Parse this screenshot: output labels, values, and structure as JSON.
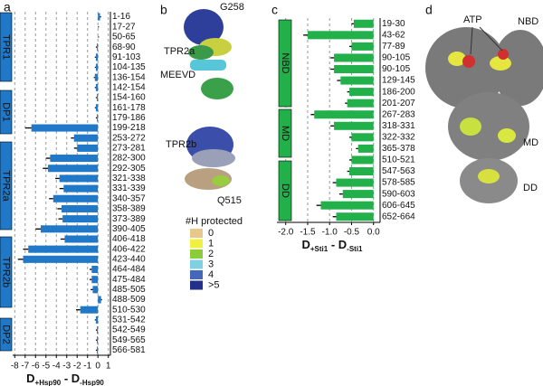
{
  "panels": [
    "a",
    "b",
    "c",
    "d"
  ],
  "chart_data": [
    {
      "type": "bar",
      "orientation": "horizontal",
      "categories": [
        "1-16",
        "17-27",
        "50-65",
        "68-90",
        "91-103",
        "104-135",
        "136-154",
        "142-154",
        "154-160",
        "161-178",
        "179-186",
        "199-218",
        "253-272",
        "273-281",
        "282-300",
        "292-305",
        "321-338",
        "331-339",
        "340-357",
        "358-389",
        "373-389",
        "390-405",
        "406-418",
        "406-422",
        "423-440",
        "464-484",
        "475-484",
        "485-505",
        "488-509",
        "510-530",
        "531-542",
        "542-549",
        "549-565",
        "566-581"
      ],
      "values": [
        0.2,
        0,
        0,
        -0.1,
        -0.2,
        -0.2,
        -0.3,
        -0.2,
        -0.1,
        -0.2,
        -0.1,
        -6.4,
        -2.3,
        -2.0,
        -4.6,
        -4.8,
        -3.7,
        -3.3,
        -4.3,
        -3.5,
        -3.4,
        -5.5,
        -3.2,
        -6.7,
        -7.2,
        -0.6,
        -0.6,
        -0.5,
        0.3,
        -1.7,
        -0.2,
        -0.1,
        -0.1,
        -0.1
      ],
      "errors": [
        0.1,
        0.1,
        0.1,
        0.1,
        0.1,
        0.1,
        0.1,
        0.1,
        0.1,
        0.1,
        0.1,
        0.6,
        0.3,
        0.3,
        0.4,
        0.5,
        0.4,
        0.4,
        0.4,
        0.4,
        0.4,
        0.5,
        0.4,
        0.5,
        0.5,
        0.2,
        0.2,
        0.2,
        0.1,
        0.4,
        0.1,
        0.1,
        0.1,
        0.1
      ],
      "color": "#1f78c8",
      "xlim": [
        -8.2,
        1.2
      ],
      "xticks": [
        -8,
        -7,
        -6,
        -5,
        -4,
        -3,
        -2,
        -1,
        0,
        1
      ],
      "grid": true,
      "x_label": [
        "D",
        "+Hsp90",
        " - D",
        "-Hsp90"
      ],
      "domains": [
        "TPR1",
        "DP1",
        "TPR2a",
        "TPR2b",
        "DP2"
      ],
      "domain_color": "#1f78c8"
    },
    {
      "type": "bar",
      "orientation": "horizontal",
      "categories": [
        "19-30",
        "43-62",
        "77-89",
        "90-105",
        "90-105",
        "129-145",
        "186-200",
        "201-207",
        "267-283",
        "318-331",
        "322-332",
        "365-378",
        "510-521",
        "547-563",
        "578-585",
        "590-603",
        "606-645",
        "652-664"
      ],
      "values": [
        -0.45,
        -1.5,
        -0.5,
        -0.9,
        -0.9,
        -0.75,
        -0.55,
        -0.6,
        -1.35,
        -0.9,
        -0.5,
        -0.35,
        -0.5,
        -0.55,
        -0.85,
        -0.7,
        -1.2,
        -0.85
      ],
      "errors": [
        0.05,
        0.1,
        0.05,
        0.08,
        0.08,
        0.08,
        0.05,
        0.05,
        0.08,
        0.08,
        0.05,
        0.05,
        0.05,
        0.05,
        0.08,
        0.08,
        0.1,
        0.08
      ],
      "color": "#22b04a",
      "xlim": [
        -2.2,
        0.15
      ],
      "xticks": [
        {
          "value": -2,
          "label": "-2.0"
        },
        -1.5,
        {
          "value": -1,
          "label": "-1.0"
        },
        -0.5,
        {
          "value": 0,
          "label": "0.0"
        }
      ],
      "grid": true,
      "x_label": [
        "D",
        "+Sti1",
        " - D",
        "-Sti1"
      ],
      "domains": [
        "NBD",
        "MD",
        "DD"
      ],
      "domain_color": "#22b04a"
    }
  ],
  "structure_b": {
    "labels": [
      "G258",
      "TPR2a",
      "MEEVD",
      "TPR2b",
      "Q515"
    ],
    "legend_title": "#H protected",
    "legend": [
      {
        "label": "0",
        "color": "#e8c88a"
      },
      {
        "label": "1",
        "color": "#f0f040"
      },
      {
        "label": "2",
        "color": "#8ccc3a"
      },
      {
        "label": "3",
        "color": "#7fd0e0"
      },
      {
        "label": "4",
        "color": "#4466bb"
      },
      {
        "label": ">5",
        "color": "#22308a"
      }
    ]
  },
  "structure_d": {
    "labels": [
      "ATP",
      "NBD",
      "MD",
      "DD"
    ]
  }
}
